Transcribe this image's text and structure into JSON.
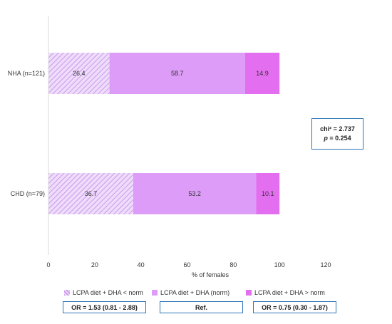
{
  "chart_data": {
    "type": "bar",
    "orientation": "horizontal",
    "stacked": true,
    "categories": [
      "NHA (n=121)",
      "CHD (n=79)"
    ],
    "series": [
      {
        "name": "LCPA diet + DHA < norm",
        "values": [
          26.4,
          36.7
        ],
        "color": "#d9b3f5",
        "pattern": "diagonal-hatch"
      },
      {
        "name": "LCPA diet + DHA (norm)",
        "values": [
          58.7,
          53.2
        ],
        "color": "#dc9cf7"
      },
      {
        "name": "LCPA diet + DHA > norm",
        "values": [
          14.9,
          10.1
        ],
        "color": "#e46ef0"
      }
    ],
    "data_labels": [
      [
        "26.4",
        "36.7"
      ],
      [
        "58.7",
        "53.2"
      ],
      [
        "14.9",
        "10.1"
      ]
    ],
    "xlabel": "% of females",
    "ylabel": "",
    "xlim": [
      0,
      120
    ],
    "xticks": [
      "0",
      "20",
      "40",
      "60",
      "80",
      "100",
      "120"
    ],
    "grid": false,
    "legend_position": "bottom"
  },
  "stats": {
    "chi_label": "chi² = 2.737",
    "p_prefix": "p",
    "p_rest": " = 0.254"
  },
  "odds_ratios": [
    "OR = 1.53 (0.81 - 2.88)",
    "Ref.",
    "OR = 0.75 (0.30 - 1.87)"
  ],
  "colors": {
    "axis": "#d9d9d9",
    "box_border": "#2e75b6",
    "text": "#333333"
  }
}
